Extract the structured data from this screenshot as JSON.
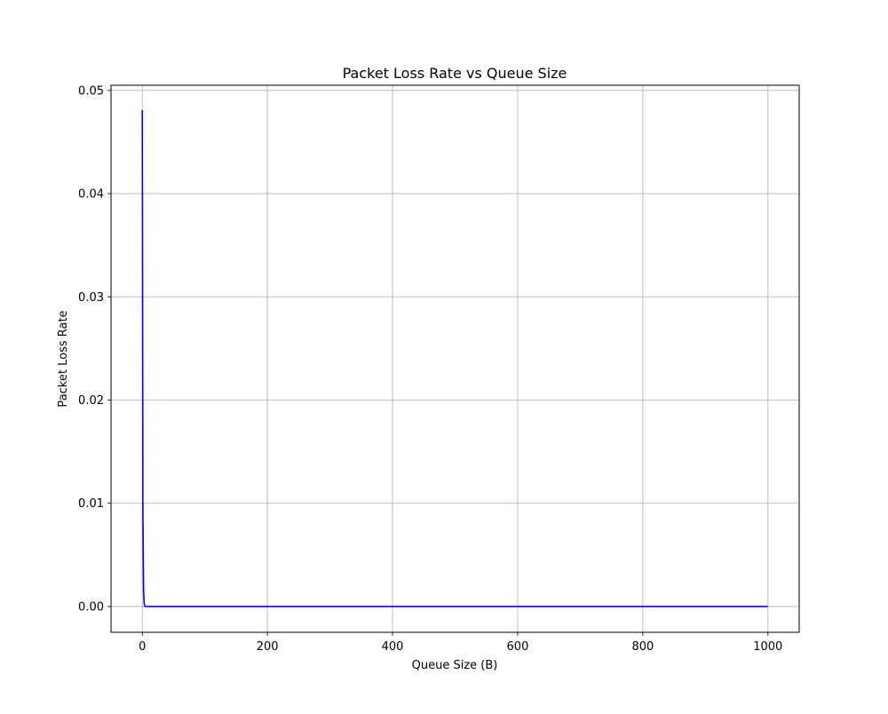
{
  "chart_data": {
    "type": "line",
    "title": "Packet Loss Rate vs Queue Size",
    "xlabel": "Queue Size (B)",
    "ylabel": "Packet Loss Rate",
    "xlim": [
      -50,
      1050
    ],
    "ylim": [
      -0.0025,
      0.0505
    ],
    "xticks": [
      0,
      200,
      400,
      600,
      800,
      1000
    ],
    "xtick_labels": [
      "0",
      "200",
      "400",
      "600",
      "800",
      "1000"
    ],
    "yticks": [
      0.0,
      0.01,
      0.02,
      0.03,
      0.04,
      0.05
    ],
    "ytick_labels": [
      "0.00",
      "0.01",
      "0.02",
      "0.03",
      "0.04",
      "0.05"
    ],
    "grid": true,
    "series": [
      {
        "color": "#0000ff",
        "x": [
          0,
          1,
          2,
          3,
          4,
          5,
          10,
          20,
          50,
          100,
          200,
          400,
          600,
          800,
          1000
        ],
        "y": [
          0.0481,
          0.0093,
          0.0017,
          0.0003,
          6e-05,
          1e-05,
          0.0,
          0.0,
          0.0,
          0.0,
          0.0,
          0.0,
          0.0,
          0.0,
          0.0
        ]
      }
    ]
  }
}
